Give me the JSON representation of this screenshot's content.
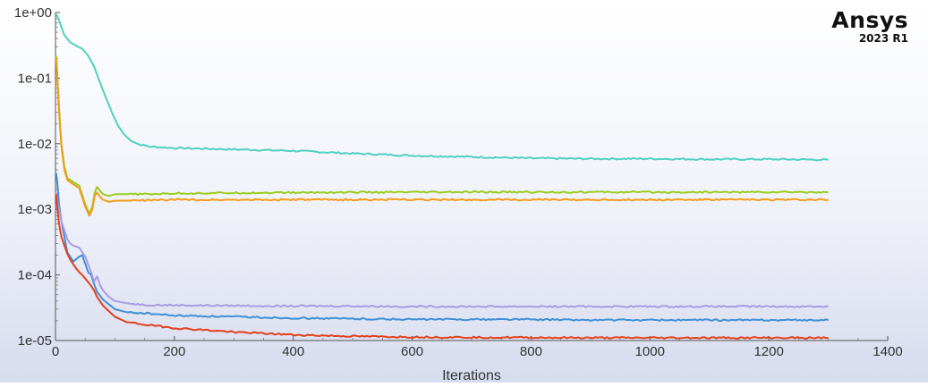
{
  "brand": {
    "name": "Ansys",
    "version": "2023 R1"
  },
  "chart_data": {
    "type": "line",
    "title": "",
    "xlabel": "Iterations",
    "ylabel": "",
    "xlim": [
      0,
      1400
    ],
    "ylim": [
      1e-05,
      1
    ],
    "yscale": "log",
    "grid": false,
    "legend": "none",
    "xticks": [
      "0",
      "200",
      "400",
      "600",
      "800",
      "1000",
      "1200",
      "1400"
    ],
    "yticks": [
      "1e+00",
      "1e-01",
      "1e-02",
      "1e-03",
      "1e-04",
      "1e-05"
    ],
    "series": [
      {
        "color": "#4fd1c0",
        "x": [
          1,
          5,
          15,
          25,
          35,
          45,
          55,
          65,
          75,
          85,
          95,
          105,
          115,
          125,
          140,
          160,
          200,
          300,
          400,
          500,
          600,
          700,
          800,
          900,
          1000,
          1100,
          1200,
          1300
        ],
        "y": [
          0.95,
          0.8,
          0.45,
          0.35,
          0.31,
          0.28,
          0.22,
          0.15,
          0.085,
          0.05,
          0.03,
          0.019,
          0.014,
          0.0115,
          0.0098,
          0.009,
          0.0086,
          0.0082,
          0.0078,
          0.0071,
          0.0066,
          0.0063,
          0.006,
          0.0059,
          0.0059,
          0.0058,
          0.0058,
          0.0057
        ]
      },
      {
        "color": "#9acd1c",
        "x": [
          1,
          3,
          6,
          10,
          15,
          20,
          30,
          40,
          50,
          57,
          62,
          66,
          70,
          75,
          80,
          90,
          100,
          150,
          200,
          300,
          400,
          500,
          600,
          700,
          800,
          900,
          1000,
          1100,
          1200,
          1300
        ],
        "y": [
          0.22,
          0.12,
          0.035,
          0.01,
          0.0045,
          0.003,
          0.0026,
          0.0023,
          0.0012,
          0.00085,
          0.0011,
          0.0018,
          0.0022,
          0.0019,
          0.0017,
          0.0016,
          0.0017,
          0.0017,
          0.00175,
          0.00178,
          0.0018,
          0.00182,
          0.00182,
          0.00183,
          0.00183,
          0.00183,
          0.00183,
          0.00183,
          0.00183,
          0.00183
        ]
      },
      {
        "color": "#f39c19",
        "x": [
          1,
          3,
          6,
          10,
          15,
          20,
          30,
          40,
          50,
          57,
          62,
          66,
          70,
          75,
          80,
          90,
          100,
          150,
          200,
          300,
          400,
          500,
          600,
          700,
          800,
          900,
          1000,
          1100,
          1200,
          1300
        ],
        "y": [
          0.2,
          0.1,
          0.03,
          0.009,
          0.004,
          0.0028,
          0.0024,
          0.0021,
          0.0011,
          0.0008,
          0.001,
          0.0016,
          0.0018,
          0.00155,
          0.0014,
          0.0013,
          0.00135,
          0.00137,
          0.0014,
          0.0014,
          0.0014,
          0.0014,
          0.0014,
          0.0014,
          0.0014,
          0.0014,
          0.0014,
          0.0014,
          0.0014,
          0.0014
        ]
      },
      {
        "color": "#3f8fd6",
        "x": [
          1,
          3,
          6,
          10,
          15,
          20,
          30,
          40,
          45,
          50,
          55,
          60,
          65,
          70,
          80,
          100,
          120,
          150,
          200,
          300,
          400,
          500,
          600,
          700,
          800,
          900,
          1000,
          1100,
          1200,
          1300
        ],
        "y": [
          0.0036,
          0.0026,
          0.0012,
          0.00065,
          0.00038,
          0.00022,
          0.00016,
          0.00019,
          0.0002,
          0.00015,
          0.00011,
          0.0001,
          7.2e-05,
          5.5e-05,
          4.2e-05,
          3e-05,
          2.7e-05,
          2.6e-05,
          2.4e-05,
          2.3e-05,
          2.2e-05,
          2.15e-05,
          2.1e-05,
          2.1e-05,
          2.1e-05,
          2.05e-05,
          2.05e-05,
          2.05e-05,
          2.05e-05,
          2.05e-05
        ]
      },
      {
        "color": "#a99be4",
        "x": [
          1,
          3,
          6,
          10,
          15,
          20,
          25,
          30,
          40,
          50,
          60,
          65,
          70,
          75,
          80,
          90,
          100,
          120,
          150,
          200,
          300,
          400,
          500,
          600,
          700,
          800,
          900,
          1000,
          1100,
          1200,
          1300
        ],
        "y": [
          0.0018,
          0.0014,
          0.001,
          0.00065,
          0.00048,
          0.00035,
          0.0003,
          0.00028,
          0.00026,
          0.00019,
          0.00011,
          8e-05,
          9.5e-05,
          7e-05,
          5.8e-05,
          4.6e-05,
          4e-05,
          3.7e-05,
          3.5e-05,
          3.45e-05,
          3.4e-05,
          3.35e-05,
          3.35e-05,
          3.3e-05,
          3.3e-05,
          3.3e-05,
          3.3e-05,
          3.3e-05,
          3.3e-05,
          3.3e-05,
          3.3e-05
        ]
      },
      {
        "color": "#e2401c",
        "x": [
          1,
          3,
          6,
          10,
          15,
          20,
          25,
          30,
          35,
          40,
          45,
          50,
          55,
          60,
          65,
          70,
          80,
          100,
          120,
          150,
          200,
          300,
          400,
          500,
          600,
          700,
          800,
          900,
          1000,
          1100,
          1200,
          1300
        ],
        "y": [
          0.0017,
          0.0011,
          0.0006,
          0.00038,
          0.00028,
          0.00021,
          0.00017,
          0.000145,
          0.000125,
          0.00011,
          0.0001,
          8.8e-05,
          7.8e-05,
          6.8e-05,
          5.8e-05,
          4.6e-05,
          3.4e-05,
          2.3e-05,
          1.9e-05,
          1.75e-05,
          1.55e-05,
          1.35e-05,
          1.22e-05,
          1.16e-05,
          1.13e-05,
          1.12e-05,
          1.11e-05,
          1.1e-05,
          1.1e-05,
          1.1e-05,
          1.1e-05,
          1.1e-05
        ]
      }
    ]
  }
}
